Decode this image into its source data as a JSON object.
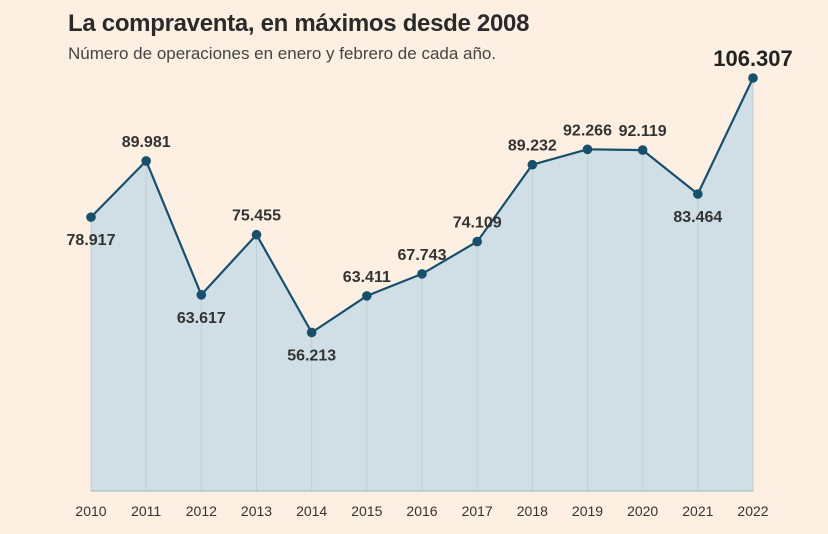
{
  "title": "La compraventa, en máximos desde 2008",
  "subtitle": "Número de operaciones en enero y febrero de cada año.",
  "colors": {
    "background": "#fdf0e2",
    "line": "#17506d",
    "area": "#d0dfe5",
    "gridline": "#c8d0d3"
  },
  "chart_data": {
    "type": "area",
    "title": "La compraventa, en máximos desde 2008",
    "subtitle": "Número de operaciones en enero y febrero de cada año.",
    "xlabel": "",
    "ylabel": "",
    "categories": [
      "2010",
      "2011",
      "2012",
      "2013",
      "2014",
      "2015",
      "2016",
      "2017",
      "2018",
      "2019",
      "2020",
      "2021",
      "2022"
    ],
    "values": [
      78917,
      89981,
      63617,
      75455,
      56213,
      63411,
      67743,
      74109,
      89232,
      92266,
      92119,
      83464,
      106307
    ],
    "labels": [
      "78.917",
      "89.981",
      "63.617",
      "75.455",
      "56.213",
      "63.411",
      "67.743",
      "74.109",
      "89.232",
      "92.266",
      "92.119",
      "83.464",
      "106.307"
    ],
    "ylim": [
      25000,
      106307
    ],
    "grid": false,
    "legend": "none",
    "markers": true
  }
}
